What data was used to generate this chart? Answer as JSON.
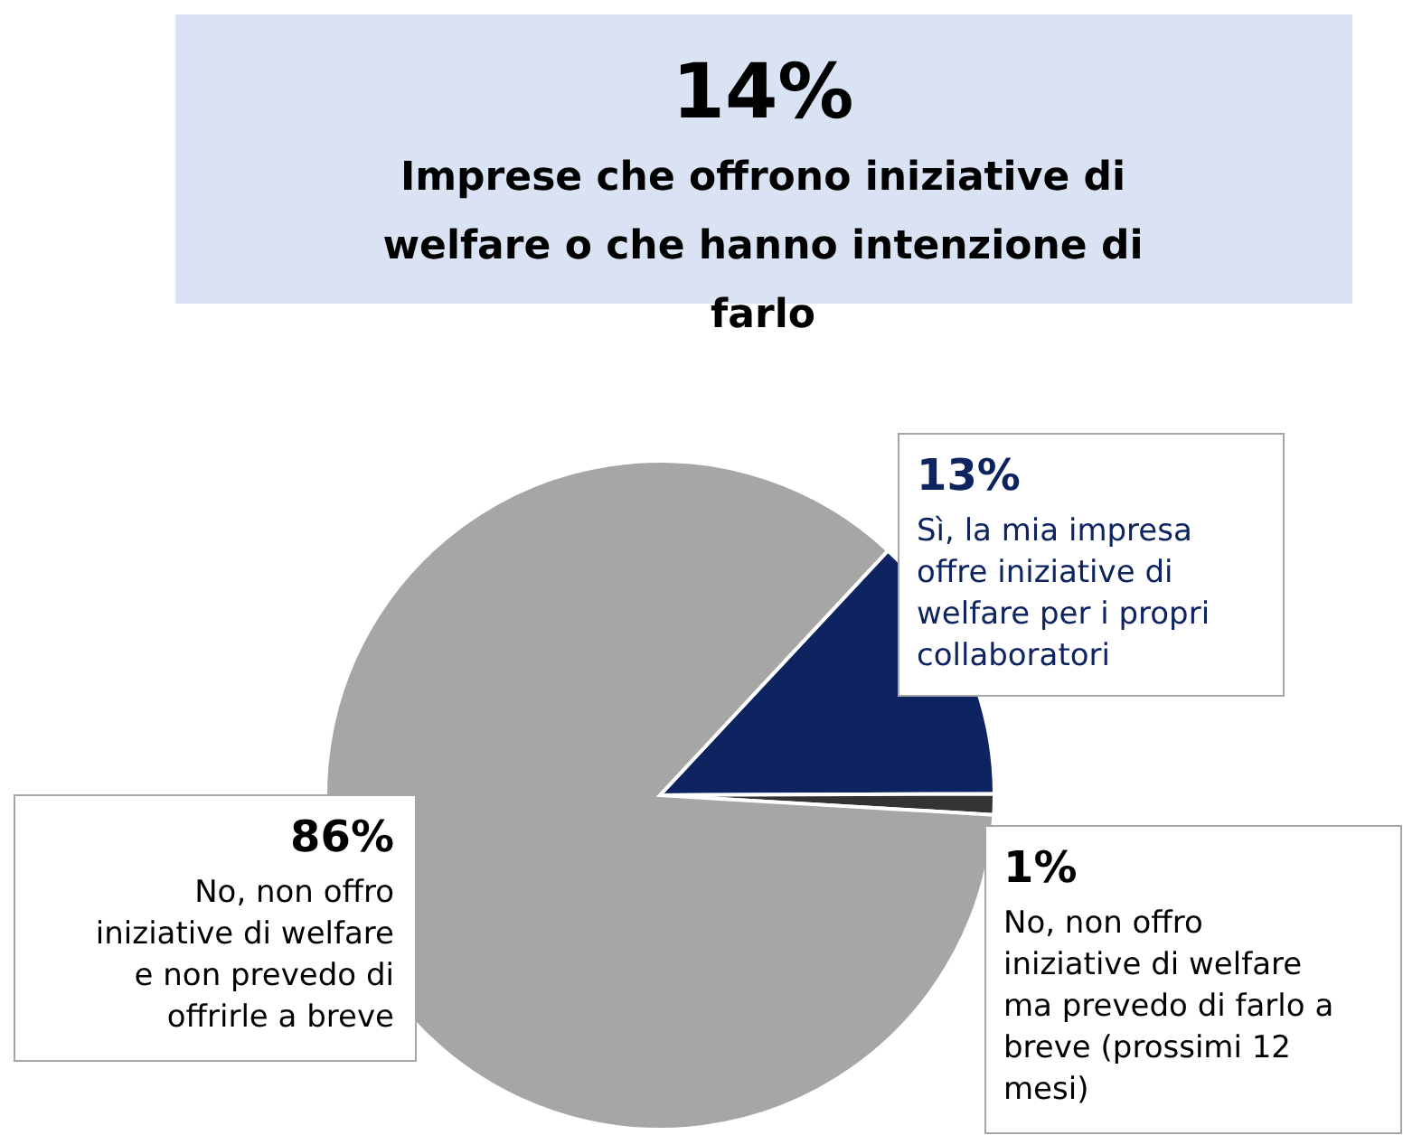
{
  "chart_data": {
    "type": "pie",
    "title": "14%",
    "subtitle": "Imprese che offrono iniziative di welfare o che hanno intenzione di farlo",
    "categories": [
      "Sì, la mia impresa offre iniziative di welfare per i propri collaboratori",
      "No, non offro iniziative di welfare ma prevedo di farlo a breve (prossimi 12 mesi)",
      "No, non offro iniziative di welfare e non prevedo di offrirle a breve"
    ],
    "values": [
      13,
      1,
      86
    ],
    "colors": [
      "#0d2461",
      "#333333",
      "#a6a6a6"
    ],
    "value_labels": [
      "13%",
      "1%",
      "86%"
    ],
    "legend": false
  }
}
